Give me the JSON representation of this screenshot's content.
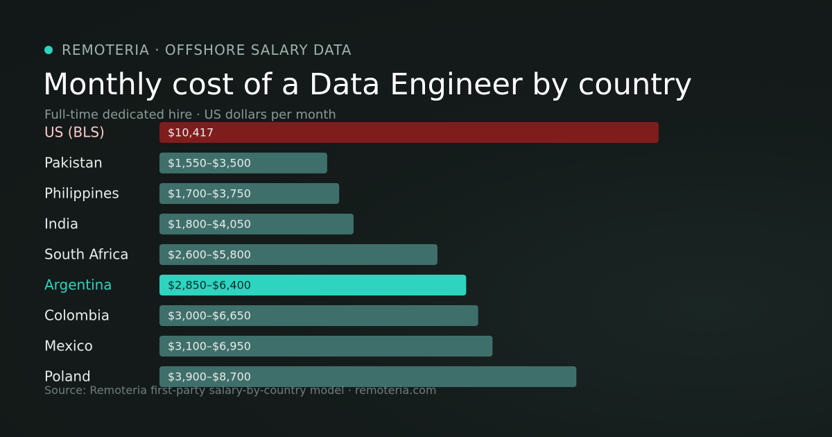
{
  "header": {
    "brand": "REMOTERIA · OFFSHORE SALARY DATA",
    "title": "Monthly cost of a Data Engineer by country",
    "subtitle": "Full-time dedicated hire · US dollars per month",
    "source": "Source: Remoteria first-party salary-by-country model · remoteria.com"
  },
  "colors": {
    "brand_dot": "#2dd4bf",
    "us_bar": "#7f1d1d",
    "us_label": "#fecaca",
    "default_bar": "#3f6f6a",
    "default_label": "#e8ecea",
    "highlight_bar": "#2dd4bf",
    "highlight_label": "#2dd4bf",
    "highlight_value_text": "#0f2a26",
    "value_text": "#e8ecea"
  },
  "chart_data": {
    "type": "bar",
    "orientation": "horizontal",
    "title": "Monthly cost of a Data Engineer by country",
    "subtitle": "Full-time dedicated hire · US dollars per month",
    "xlim": [
      0,
      10417
    ],
    "grid": false,
    "categories": [
      "US (BLS)",
      "Pakistan",
      "Philippines",
      "India",
      "South Africa",
      "Argentina",
      "Colombia",
      "Mexico",
      "Poland"
    ],
    "series": [
      {
        "low": [
          10417,
          1550,
          1700,
          1800,
          2600,
          2850,
          3000,
          3100,
          3900
        ],
        "high": [
          10417,
          3500,
          3750,
          4050,
          5800,
          6400,
          6650,
          6950,
          8700
        ]
      }
    ],
    "value_labels": [
      "$10,417",
      "$1,550–$3,500",
      "$1,700–$3,750",
      "$1,800–$4,050",
      "$2,600–$5,800",
      "$2,850–$6,400",
      "$3,000–$6,650",
      "$3,100–$6,950",
      "$3,900–$8,700"
    ],
    "benchmark_category": "US (BLS)",
    "highlight_category": "Argentina"
  }
}
